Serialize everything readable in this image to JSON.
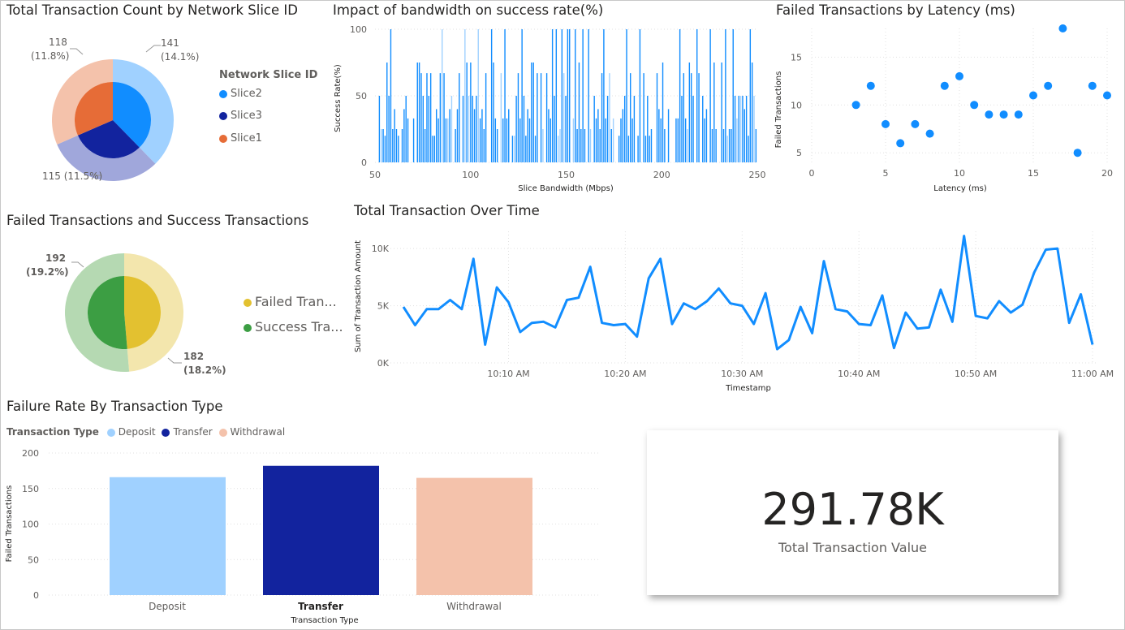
{
  "colors": {
    "slice2": "#118DFF",
    "slice2_outer": "#A0D1FF",
    "slice3": "#12239E",
    "slice3_outer": "#A0A7DB",
    "slice1": "#E66C37",
    "slice1_outer": "#F4C2AB",
    "failed": "#E3C130",
    "failed_outer": "#F3E6AD",
    "success": "#3C9E43",
    "success_outer": "#B5D9B2",
    "deposit": "#A0D1FF",
    "transfer": "#12239E",
    "withdrawal": "#F4C2AB",
    "line": "#118DFF",
    "scatter": "#118DFF"
  },
  "donut1": {
    "title": "Total Transaction Count by Network Slice ID",
    "legend_title": "Network Slice ID",
    "legend": [
      "Slice2",
      "Slice3",
      "Slice1"
    ],
    "labels": {
      "a_val": "141",
      "a_pct": "(14.1%)",
      "b": "115 (11.5%)",
      "c_val": "118",
      "c_pct": "(11.8%)"
    }
  },
  "donut2": {
    "title": "Failed Transactions and Success Transactions",
    "legend": [
      "Failed Tran...",
      "Success Tra..."
    ],
    "labels": {
      "a_val": "192",
      "a_pct": "(19.2%)",
      "b_val": "182",
      "b_pct": "(18.2%)"
    }
  },
  "kpi": {
    "value": "291.78K",
    "label": "Total Transaction Value"
  },
  "chart_data": [
    {
      "type": "pie",
      "title": "Total Transaction Count by Network Slice ID",
      "legend_title": "Network Slice ID",
      "categories": [
        "Slice2",
        "Slice3",
        "Slice1"
      ],
      "values": [
        141,
        115,
        118
      ],
      "data_labels": [
        "141 (14.1%)",
        "115 (11.5%)",
        "118 (11.8%)"
      ]
    },
    {
      "type": "bar",
      "title": "Impact of bandwidth on success rate(%)",
      "xlabel": "Slice Bandwidth (Mbps)",
      "ylabel": "Success Rate(%)",
      "xlim": [
        50,
        250
      ],
      "ylim": [
        0,
        100
      ],
      "xticks": [
        50,
        100,
        150,
        200,
        250
      ],
      "yticks": [
        0,
        50,
        100
      ],
      "value_levels": [
        0,
        20,
        25,
        33,
        40,
        50,
        67,
        75,
        100
      ],
      "bar_count": 200
    },
    {
      "type": "scatter",
      "title": "Failed Transactions by Latency (ms)",
      "xlabel": "Latency (ms)",
      "ylabel": "Failed Transactions",
      "xlim": [
        0,
        20
      ],
      "ylim": [
        4,
        18
      ],
      "xticks": [
        0,
        5,
        10,
        15,
        20
      ],
      "yticks": [
        5,
        10,
        15
      ],
      "x": [
        3,
        4,
        5,
        6,
        7,
        8,
        9,
        10,
        11,
        12,
        13,
        14,
        15,
        16,
        17,
        18,
        19,
        20
      ],
      "y": [
        10,
        12,
        8,
        6,
        8,
        7,
        12,
        13,
        10,
        9,
        9,
        9,
        11,
        12,
        18,
        5,
        12,
        11
      ]
    },
    {
      "type": "pie",
      "title": "Failed Transactions and Success Transactions",
      "categories": [
        "Failed Transactions",
        "Success Transactions"
      ],
      "values": [
        182,
        192
      ],
      "data_labels": [
        "182 (18.2%)",
        "192 (19.2%)"
      ]
    },
    {
      "type": "line",
      "title": "Total Transaction Over Time",
      "xlabel": "Timestamp",
      "ylabel": "Sum of Transaction Amount",
      "ylim": [
        0,
        11500
      ],
      "yticks": [
        0,
        5000,
        10000
      ],
      "ytick_labels": [
        "0K",
        "5K",
        "10K"
      ],
      "x_minutes_from_10_00": [
        1,
        2,
        3,
        4,
        5,
        6,
        7,
        8,
        9,
        10,
        11,
        12,
        13,
        14,
        15,
        16,
        17,
        18,
        19,
        20,
        21,
        22,
        23,
        24,
        25,
        26,
        27,
        28,
        29,
        30,
        31,
        32,
        33,
        34,
        35,
        36,
        37,
        38,
        39,
        40,
        41,
        42,
        43,
        44,
        45,
        46,
        47,
        48,
        49,
        50,
        51,
        52,
        53,
        54,
        55,
        56,
        57,
        58,
        59,
        60
      ],
      "xticks": [
        10,
        20,
        30,
        40,
        50,
        60
      ],
      "xtick_labels": [
        "10:10 AM",
        "10:20 AM",
        "10:30 AM",
        "10:40 AM",
        "10:50 AM",
        "11:00 AM"
      ],
      "values": [
        4900,
        3300,
        4700,
        4700,
        5500,
        4700,
        9100,
        1600,
        6600,
        5300,
        2700,
        3500,
        3600,
        3100,
        5500,
        5700,
        8400,
        3500,
        3300,
        3400,
        2300,
        7400,
        9100,
        3400,
        5200,
        4700,
        5400,
        6500,
        5200,
        5000,
        3400,
        6100,
        1200,
        2000,
        4900,
        2600,
        8900,
        4700,
        4500,
        3400,
        3300,
        5900,
        1300,
        4400,
        3000,
        3100,
        6400,
        3600,
        11100,
        4100,
        3900,
        5400,
        4400,
        5100,
        7900,
        9900,
        10000,
        3500,
        6000,
        1600
      ]
    },
    {
      "type": "bar",
      "title": "Failure Rate By Transaction Type",
      "legend_title": "Transaction Type",
      "categories": [
        "Deposit",
        "Transfer",
        "Withdrawal"
      ],
      "values": [
        166,
        182,
        165
      ],
      "xlabel": "Transaction Type",
      "ylabel": "Failed Transactions",
      "ylim": [
        0,
        200
      ],
      "yticks": [
        0,
        50,
        100,
        150,
        200
      ]
    }
  ]
}
